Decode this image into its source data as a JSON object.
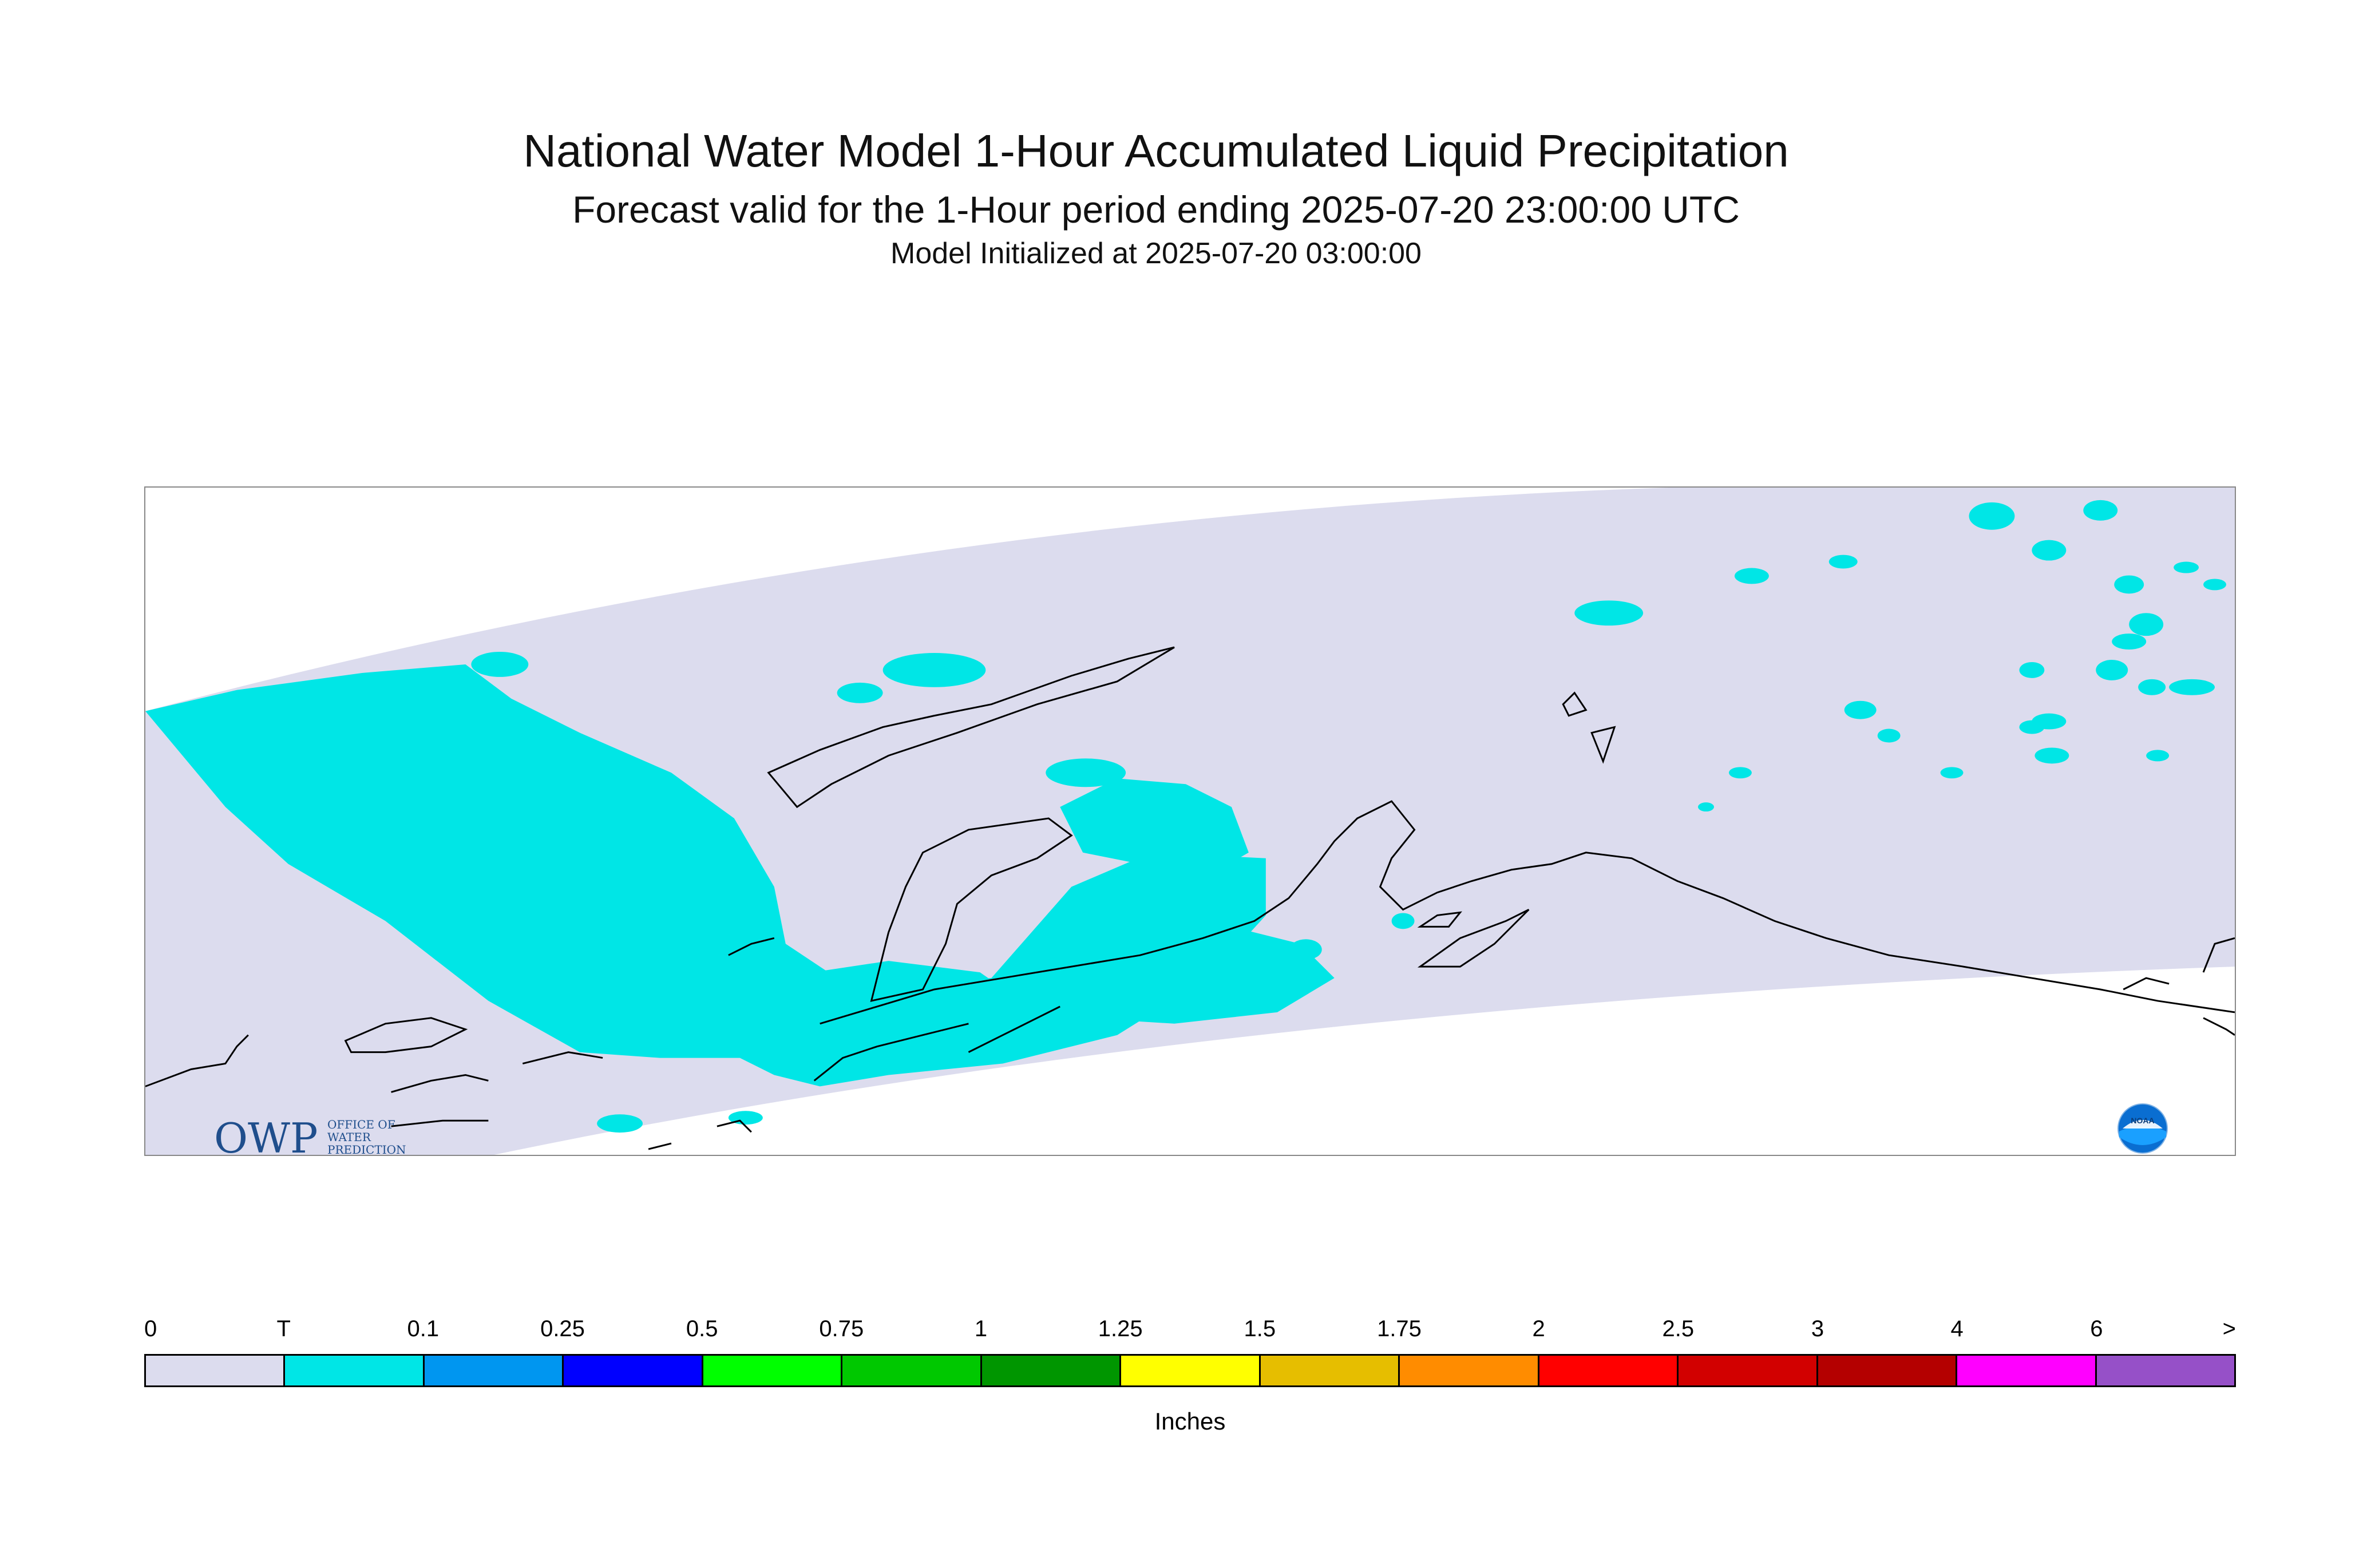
{
  "header": {
    "title": "National Water Model 1-Hour Accumulated Liquid Precipitation",
    "subtitle": "Forecast valid for the 1-Hour period ending 2025-07-20 23:00:00 UTC",
    "init_line": "Model Initialized at 2025-07-20 03:00:00"
  },
  "colors": {
    "domain_fill": "#dcdcee",
    "trace_fill": "#00e6e6",
    "coastline": "#000000",
    "frame": "#888888"
  },
  "logos": {
    "owp_text": "OWP",
    "owp_small": [
      "OFFICE OF",
      "WATER",
      "PREDICTION"
    ],
    "noaa_text": "NOAA"
  },
  "legend": {
    "unit": "Inches",
    "ticks": [
      "0",
      "T",
      "0.1",
      "0.25",
      "0.5",
      "0.75",
      "1",
      "1.25",
      "1.5",
      "1.75",
      "2",
      "2.5",
      "3",
      "4",
      "6",
      ">"
    ],
    "colors": [
      "#dcdcee",
      "#00e6e6",
      "#0096f0",
      "#0000ff",
      "#00ff00",
      "#00c800",
      "#009600",
      "#ffff00",
      "#e6be00",
      "#ff8c00",
      "#ff0000",
      "#d20000",
      "#b40000",
      "#ff00ff",
      "#9650c8"
    ]
  }
}
